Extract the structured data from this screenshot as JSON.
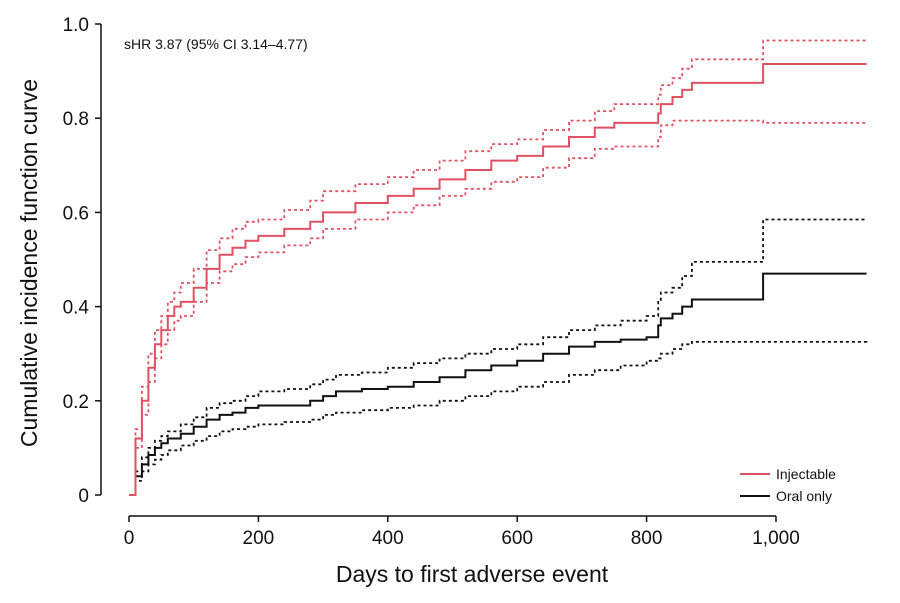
{
  "chart_data": {
    "type": "line",
    "step": true,
    "xlabel": "Days to first adverse event",
    "ylabel": "Cumulative incidence function curve",
    "annotation": "sHR 3.87 (95% CI 3.14–4.77)",
    "xlim": [
      0,
      1140
    ],
    "ylim": [
      0,
      1.0
    ],
    "xticks": [
      0,
      200,
      400,
      600,
      800,
      1000
    ],
    "xtick_labels": [
      "0",
      "200",
      "400",
      "600",
      "800",
      "1,000"
    ],
    "yticks": [
      0,
      0.2,
      0.4,
      0.6,
      0.8,
      1.0
    ],
    "ytick_labels": [
      "0",
      "0.2",
      "0.4",
      "0.6",
      "0.8",
      "1.0"
    ],
    "grid": false,
    "legend_position": "bottom-right",
    "legend": [
      {
        "label": "Injectable",
        "color": "#e05262"
      },
      {
        "label": "Oral only",
        "color": "#111111"
      }
    ],
    "series": [
      {
        "name": "Injectable",
        "color": "#e05262",
        "style": "solid",
        "x": [
          0,
          10,
          20,
          30,
          40,
          50,
          60,
          70,
          80,
          100,
          120,
          140,
          160,
          180,
          200,
          240,
          280,
          300,
          350,
          400,
          440,
          480,
          520,
          560,
          600,
          640,
          680,
          720,
          750,
          800,
          818,
          822,
          840,
          855,
          870,
          980,
          1140
        ],
        "y": [
          0,
          0.12,
          0.2,
          0.27,
          0.32,
          0.35,
          0.38,
          0.4,
          0.41,
          0.44,
          0.48,
          0.51,
          0.525,
          0.54,
          0.55,
          0.565,
          0.58,
          0.6,
          0.62,
          0.635,
          0.65,
          0.67,
          0.69,
          0.71,
          0.72,
          0.74,
          0.76,
          0.78,
          0.79,
          0.79,
          0.81,
          0.83,
          0.845,
          0.86,
          0.875,
          0.915,
          0.915
        ]
      },
      {
        "name": "Injectable upper 95% CI",
        "color": "#e05262",
        "style": "dotted",
        "x": [
          0,
          10,
          20,
          30,
          40,
          50,
          60,
          70,
          80,
          100,
          120,
          140,
          160,
          180,
          200,
          240,
          280,
          300,
          350,
          400,
          440,
          480,
          520,
          560,
          600,
          640,
          680,
          720,
          750,
          800,
          818,
          822,
          840,
          855,
          870,
          980,
          1140
        ],
        "y": [
          0,
          0.14,
          0.23,
          0.3,
          0.35,
          0.38,
          0.41,
          0.43,
          0.45,
          0.48,
          0.52,
          0.545,
          0.565,
          0.58,
          0.585,
          0.605,
          0.625,
          0.645,
          0.66,
          0.675,
          0.69,
          0.71,
          0.73,
          0.745,
          0.755,
          0.775,
          0.795,
          0.815,
          0.83,
          0.83,
          0.85,
          0.87,
          0.885,
          0.905,
          0.925,
          0.965,
          0.965
        ]
      },
      {
        "name": "Injectable lower 95% CI",
        "color": "#e05262",
        "style": "dotted",
        "x": [
          0,
          10,
          20,
          30,
          40,
          50,
          60,
          70,
          80,
          100,
          120,
          140,
          160,
          180,
          200,
          240,
          280,
          300,
          350,
          400,
          440,
          480,
          520,
          560,
          600,
          640,
          680,
          720,
          750,
          800,
          818,
          822,
          840,
          855,
          870,
          980,
          1140
        ],
        "y": [
          0,
          0.1,
          0.17,
          0.24,
          0.29,
          0.32,
          0.35,
          0.37,
          0.38,
          0.41,
          0.45,
          0.475,
          0.49,
          0.505,
          0.515,
          0.53,
          0.545,
          0.565,
          0.585,
          0.6,
          0.615,
          0.635,
          0.65,
          0.665,
          0.675,
          0.695,
          0.715,
          0.735,
          0.74,
          0.74,
          0.76,
          0.785,
          0.795,
          0.795,
          0.795,
          0.79,
          0.79
        ]
      },
      {
        "name": "Oral only",
        "color": "#111111",
        "style": "solid",
        "x": [
          0,
          10,
          20,
          30,
          40,
          50,
          60,
          80,
          100,
          120,
          140,
          160,
          180,
          200,
          240,
          280,
          300,
          320,
          360,
          400,
          440,
          480,
          520,
          560,
          600,
          640,
          680,
          720,
          760,
          800,
          818,
          822,
          840,
          855,
          870,
          980,
          1140
        ],
        "y": [
          0,
          0.04,
          0.065,
          0.085,
          0.1,
          0.11,
          0.12,
          0.13,
          0.145,
          0.16,
          0.17,
          0.175,
          0.185,
          0.19,
          0.19,
          0.2,
          0.21,
          0.22,
          0.225,
          0.23,
          0.24,
          0.25,
          0.265,
          0.275,
          0.285,
          0.3,
          0.315,
          0.325,
          0.33,
          0.335,
          0.36,
          0.375,
          0.385,
          0.4,
          0.415,
          0.47,
          0.47
        ]
      },
      {
        "name": "Oral only upper 95% CI",
        "color": "#111111",
        "style": "dotted",
        "x": [
          0,
          10,
          20,
          30,
          40,
          50,
          60,
          80,
          100,
          120,
          140,
          160,
          180,
          200,
          240,
          280,
          300,
          320,
          360,
          400,
          440,
          480,
          520,
          560,
          600,
          640,
          680,
          720,
          760,
          800,
          818,
          822,
          840,
          855,
          870,
          980,
          1140
        ],
        "y": [
          0,
          0.05,
          0.08,
          0.1,
          0.115,
          0.125,
          0.135,
          0.15,
          0.165,
          0.185,
          0.195,
          0.2,
          0.21,
          0.22,
          0.225,
          0.235,
          0.245,
          0.255,
          0.26,
          0.27,
          0.28,
          0.29,
          0.3,
          0.31,
          0.32,
          0.335,
          0.35,
          0.36,
          0.37,
          0.38,
          0.41,
          0.43,
          0.44,
          0.465,
          0.495,
          0.585,
          0.585
        ]
      },
      {
        "name": "Oral only lower 95% CI",
        "color": "#111111",
        "style": "dotted",
        "x": [
          0,
          10,
          20,
          30,
          40,
          50,
          60,
          80,
          100,
          120,
          140,
          160,
          180,
          200,
          240,
          280,
          300,
          320,
          360,
          400,
          440,
          480,
          520,
          560,
          600,
          640,
          680,
          720,
          760,
          800,
          818,
          822,
          840,
          855,
          870,
          980,
          1140
        ],
        "y": [
          0,
          0.03,
          0.05,
          0.065,
          0.075,
          0.085,
          0.095,
          0.105,
          0.115,
          0.125,
          0.135,
          0.14,
          0.145,
          0.15,
          0.155,
          0.16,
          0.17,
          0.175,
          0.18,
          0.185,
          0.19,
          0.2,
          0.21,
          0.22,
          0.23,
          0.24,
          0.255,
          0.265,
          0.275,
          0.285,
          0.29,
          0.3,
          0.31,
          0.32,
          0.325,
          0.325,
          0.32
        ]
      }
    ]
  }
}
